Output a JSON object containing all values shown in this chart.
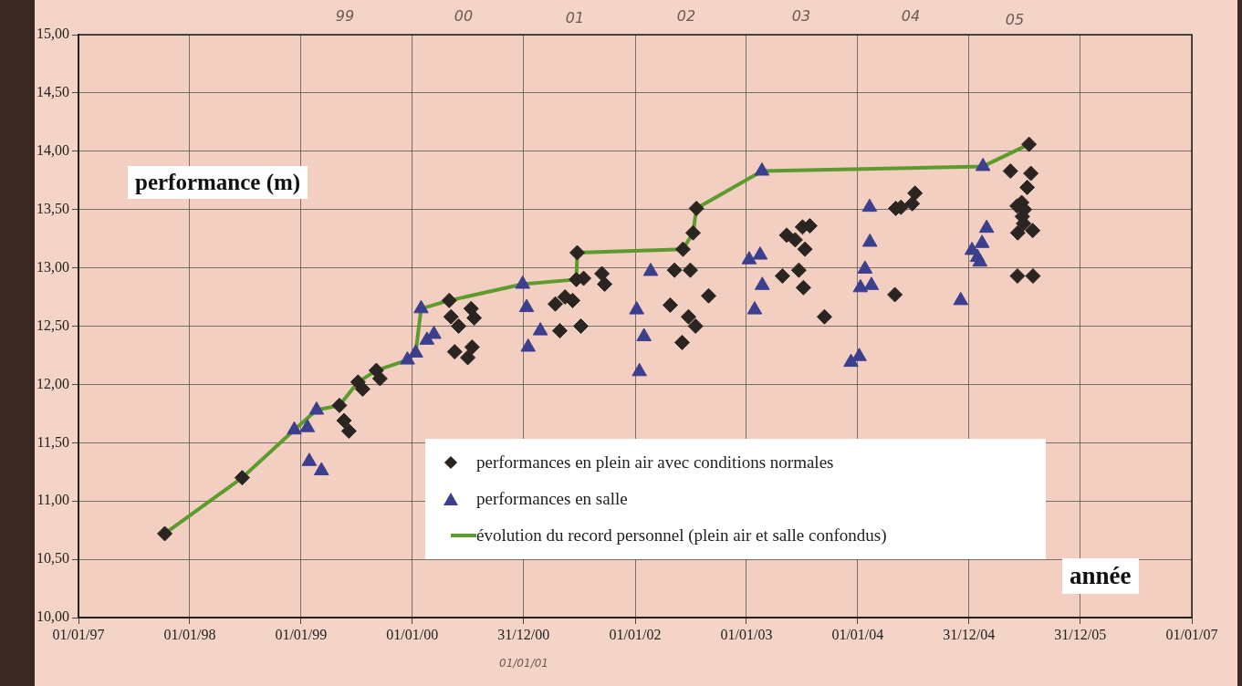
{
  "chart_data": {
    "type": "scatter",
    "xlabel": "année",
    "ylabel": "performance (m)",
    "xlim": [
      "1997-01-01",
      "2007-01-01"
    ],
    "xticks": [
      {
        "value": "1997-01-01",
        "label": "01/01/97"
      },
      {
        "value": "1998-01-01",
        "label": "01/01/98"
      },
      {
        "value": "1999-01-01",
        "label": "01/01/99"
      },
      {
        "value": "2000-01-01",
        "label": "01/01/00"
      },
      {
        "value": "2000-12-31",
        "label": "31/12/00"
      },
      {
        "value": "2002-01-01",
        "label": "01/01/02"
      },
      {
        "value": "2003-01-01",
        "label": "01/01/03"
      },
      {
        "value": "2004-01-01",
        "label": "01/01/04"
      },
      {
        "value": "2004-12-31",
        "label": "31/12/04"
      },
      {
        "value": "2005-12-31",
        "label": "31/12/05"
      },
      {
        "value": "2007-01-01",
        "label": "01/01/07"
      }
    ],
    "ylim": [
      10,
      15
    ],
    "yticks": [
      {
        "value": 10,
        "label": "10,00"
      },
      {
        "value": 10.5,
        "label": "10,50"
      },
      {
        "value": 11,
        "label": "11,00"
      },
      {
        "value": 11.5,
        "label": "11,50"
      },
      {
        "value": 12,
        "label": "12,00"
      },
      {
        "value": 12.5,
        "label": "12,50"
      },
      {
        "value": 13,
        "label": "13,00"
      },
      {
        "value": 13.5,
        "label": "13,50"
      },
      {
        "value": 14,
        "label": "14,00"
      },
      {
        "value": 14.5,
        "label": "14,50"
      },
      {
        "value": 15,
        "label": "15,00"
      }
    ],
    "grid": true,
    "legend": "bottom",
    "annotations": [
      "99",
      "00",
      "01",
      "02",
      "03",
      "04",
      "05",
      "01/01/01"
    ],
    "series": [
      {
        "name": "performances en plein air avec conditions normales",
        "marker": "diamond",
        "color": "#2b2522",
        "x": [
          "1997-10-11",
          "1998-06-22",
          "1999-05-07",
          "1999-05-22",
          "1999-06-07",
          "1999-07-07",
          "1999-07-22",
          "1999-09-05",
          "1999-09-17",
          "2000-05-01",
          "2000-05-07",
          "2000-06-01",
          "2000-07-12",
          "2000-07-22",
          "2000-05-19",
          "2000-07-15",
          "2000-07-01",
          "2001-04-14",
          "2001-05-16",
          "2001-06-10",
          "2001-04-29",
          "2001-07-07",
          "2001-06-25",
          "2001-06-22",
          "2001-07-16",
          "2001-09-14",
          "2001-09-23",
          "2002-05-10",
          "2002-07-01",
          "2002-06-07",
          "2002-04-26",
          "2002-08-30",
          "2002-06-25",
          "2002-07-18",
          "2002-06-04",
          "2002-07-10",
          "2002-07-21",
          "2003-05-13",
          "2003-06-10",
          "2003-07-12",
          "2003-07-04",
          "2003-07-28",
          "2003-04-29",
          "2003-06-22",
          "2003-07-07",
          "2003-09-14",
          "2004-05-05",
          "2004-05-22",
          "2004-06-28",
          "2004-07-07",
          "2004-05-02",
          "2005-07-16",
          "2005-05-16",
          "2005-07-22",
          "2005-07-10",
          "2005-06-22",
          "2005-06-07",
          "2005-07-01",
          "2005-06-24",
          "2005-06-28",
          "2005-06-09",
          "2005-07-28",
          "2005-06-08",
          "2005-07-29"
        ],
        "values": [
          10.72,
          11.2,
          11.82,
          11.69,
          11.6,
          12.02,
          11.96,
          12.12,
          12.05,
          12.72,
          12.58,
          12.5,
          12.65,
          12.57,
          12.28,
          12.32,
          12.23,
          12.69,
          12.75,
          12.72,
          12.46,
          12.5,
          13.13,
          12.9,
          12.91,
          12.95,
          12.86,
          12.98,
          12.98,
          13.16,
          12.68,
          12.76,
          12.58,
          12.5,
          12.36,
          13.3,
          13.51,
          13.28,
          13.24,
          13.16,
          13.35,
          13.36,
          12.93,
          12.98,
          12.83,
          12.58,
          13.51,
          13.52,
          13.55,
          13.64,
          12.77,
          14.06,
          13.83,
          13.81,
          13.69,
          13.56,
          13.53,
          13.5,
          13.44,
          13.38,
          13.3,
          13.32,
          12.93,
          12.93
        ]
      },
      {
        "name": "performances en salle",
        "marker": "triangle",
        "color": "#3c3f8e",
        "x": [
          "1998-12-10",
          "1999-01-22",
          "1999-02-21",
          "1999-01-28",
          "1999-03-09",
          "1999-12-16",
          "2000-01-12",
          "2000-01-30",
          "2000-02-18",
          "2000-03-12",
          "2000-12-28",
          "2001-01-10",
          "2001-01-15",
          "2001-02-24",
          "2002-02-21",
          "2002-01-06",
          "2002-01-30",
          "2002-01-15",
          "2003-02-21",
          "2003-01-10",
          "2003-02-15",
          "2003-02-22",
          "2003-01-28",
          "2004-02-09",
          "2004-02-10",
          "2004-01-25",
          "2004-01-10",
          "2004-02-15",
          "2003-12-10",
          "2004-01-06",
          "2004-12-04",
          "2005-02-15",
          "2005-02-27",
          "2005-02-12",
          "2005-01-10",
          "2005-01-28",
          "2005-02-05"
        ],
        "values": [
          11.61,
          11.63,
          11.78,
          11.34,
          11.26,
          12.21,
          12.27,
          12.65,
          12.38,
          12.43,
          12.86,
          12.66,
          12.32,
          12.46,
          12.97,
          12.64,
          12.41,
          12.11,
          13.83,
          13.07,
          13.11,
          12.85,
          12.64,
          13.52,
          13.22,
          12.99,
          12.83,
          12.85,
          12.19,
          12.24,
          12.72,
          13.87,
          13.34,
          13.21,
          13.15,
          13.09,
          13.05
        ]
      },
      {
        "name": "évolution du record personnel (plein air et salle confondus)",
        "type": "line",
        "marker": "none",
        "line_style": "solid",
        "color": "#5e9b2e",
        "x": [
          "1997-10-11",
          "1998-06-22",
          "1998-12-10",
          "1999-02-21",
          "1999-05-07",
          "1999-07-07",
          "1999-09-05",
          "1999-12-16",
          "2000-01-12",
          "2000-01-30",
          "2000-05-01",
          "2000-12-28",
          "2001-06-22",
          "2001-06-25",
          "2002-06-07",
          "2002-07-10",
          "2002-07-21",
          "2003-02-21",
          "2005-02-15",
          "2005-07-16"
        ],
        "values": [
          10.72,
          11.2,
          11.61,
          11.78,
          11.82,
          12.02,
          12.12,
          12.21,
          12.27,
          12.65,
          12.72,
          12.86,
          12.9,
          13.13,
          13.16,
          13.3,
          13.51,
          13.83,
          13.87,
          14.06
        ]
      }
    ]
  }
}
